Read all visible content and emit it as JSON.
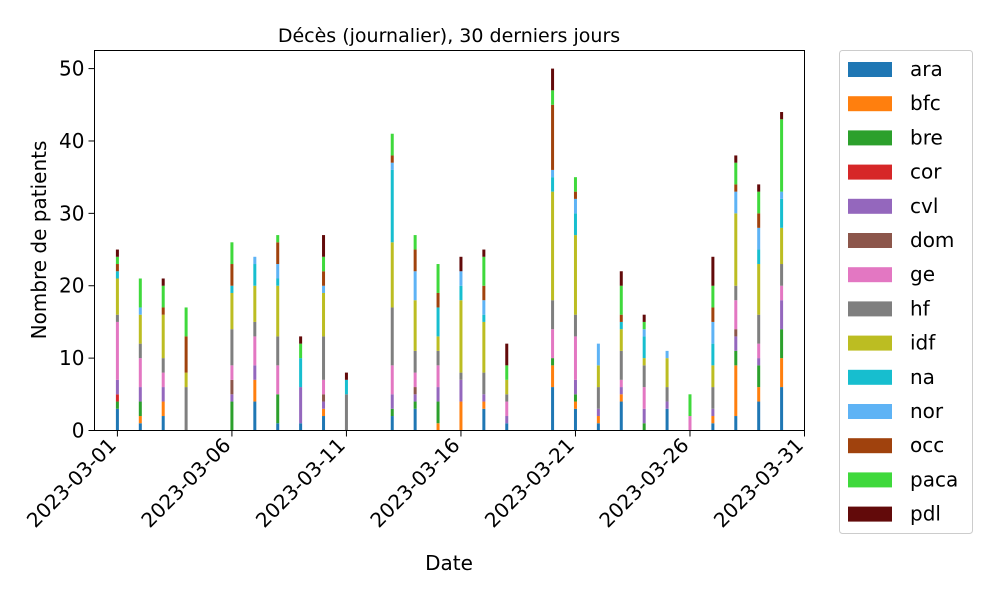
{
  "chart_data": {
    "type": "bar",
    "stacked": true,
    "title": "Décès (journalier), 30 derniers jours",
    "xlabel": "Date",
    "ylabel": "Nombre de patients",
    "ylim": [
      0,
      52.5
    ],
    "xlim": [
      "2023-02-28",
      "2023-03-31"
    ],
    "yticks": [
      0,
      10,
      20,
      30,
      40,
      50
    ],
    "xticks": [
      "2023-03-01",
      "2023-03-06",
      "2023-03-11",
      "2023-03-16",
      "2023-03-21",
      "2023-03-26",
      "2023-03-31"
    ],
    "grid": false,
    "legend_position": "outside-right",
    "dates": [
      "2023-03-01",
      "2023-03-02",
      "2023-03-03",
      "2023-03-04",
      "2023-03-05",
      "2023-03-06",
      "2023-03-07",
      "2023-03-08",
      "2023-03-09",
      "2023-03-10",
      "2023-03-11",
      "2023-03-12",
      "2023-03-13",
      "2023-03-14",
      "2023-03-15",
      "2023-03-16",
      "2023-03-17",
      "2023-03-18",
      "2023-03-19",
      "2023-03-20",
      "2023-03-21",
      "2023-03-22",
      "2023-03-23",
      "2023-03-24",
      "2023-03-25",
      "2023-03-26",
      "2023-03-27",
      "2023-03-28",
      "2023-03-29",
      "2023-03-30",
      "2023-03-31"
    ],
    "series": [
      {
        "name": "ara",
        "color": "#1f77b4",
        "values": [
          3,
          1,
          2,
          0,
          0,
          0,
          4,
          1,
          1,
          2,
          0,
          0,
          2,
          3,
          0,
          0,
          3,
          1,
          0,
          6,
          3,
          1,
          4,
          0,
          3,
          0,
          1,
          2,
          4,
          6,
          0
        ]
      },
      {
        "name": "bfc",
        "color": "#ff7f0e",
        "values": [
          0,
          1,
          2,
          0,
          0,
          0,
          3,
          0,
          0,
          1,
          0,
          0,
          0,
          0,
          1,
          4,
          1,
          0,
          0,
          3,
          1,
          1,
          1,
          0,
          0,
          0,
          1,
          7,
          2,
          4,
          0
        ]
      },
      {
        "name": "bre",
        "color": "#2ca02c",
        "values": [
          1,
          2,
          0,
          0,
          0,
          4,
          0,
          4,
          0,
          0,
          0,
          0,
          1,
          1,
          3,
          0,
          0,
          0,
          0,
          1,
          1,
          0,
          0,
          1,
          0,
          0,
          0,
          2,
          3,
          4,
          0
        ]
      },
      {
        "name": "cor",
        "color": "#d62728",
        "values": [
          1,
          0,
          0,
          0,
          0,
          0,
          0,
          0,
          0,
          0,
          0,
          0,
          0,
          0,
          0,
          0,
          0,
          0,
          0,
          0,
          0,
          0,
          0,
          0,
          0,
          0,
          0,
          0,
          0,
          0,
          0
        ]
      },
      {
        "name": "cvl",
        "color": "#9467bd",
        "values": [
          2,
          2,
          2,
          0,
          0,
          1,
          2,
          0,
          5,
          1,
          0,
          0,
          2,
          1,
          2,
          3,
          1,
          1,
          0,
          0,
          2,
          1,
          1,
          2,
          1,
          0,
          1,
          2,
          1,
          4,
          0
        ]
      },
      {
        "name": "dom",
        "color": "#8c564b",
        "values": [
          0,
          0,
          0,
          0,
          0,
          2,
          0,
          0,
          0,
          1,
          0,
          0,
          0,
          1,
          0,
          0,
          0,
          0,
          0,
          0,
          0,
          0,
          0,
          0,
          0,
          0,
          0,
          1,
          0,
          0,
          0
        ]
      },
      {
        "name": "ge",
        "color": "#e377c2",
        "values": [
          8,
          4,
          2,
          0,
          0,
          2,
          4,
          4,
          0,
          2,
          0,
          0,
          4,
          2,
          3,
          0,
          0,
          2,
          0,
          4,
          6,
          0,
          1,
          3,
          0,
          2,
          0,
          4,
          2,
          2,
          0
        ]
      },
      {
        "name": "hf",
        "color": "#7f7f7f",
        "values": [
          1,
          2,
          2,
          6,
          0,
          5,
          2,
          4,
          0,
          6,
          5,
          0,
          8,
          3,
          2,
          1,
          3,
          1,
          0,
          4,
          3,
          3,
          4,
          3,
          2,
          0,
          3,
          2,
          4,
          3,
          0
        ]
      },
      {
        "name": "idf",
        "color": "#bcbd22",
        "values": [
          5,
          4,
          6,
          2,
          0,
          5,
          5,
          7,
          0,
          6,
          0,
          0,
          9,
          7,
          2,
          10,
          7,
          2,
          0,
          15,
          11,
          3,
          3,
          1,
          4,
          0,
          3,
          10,
          7,
          5,
          0
        ]
      },
      {
        "name": "na",
        "color": "#17becf",
        "values": [
          1,
          0,
          0,
          0,
          0,
          1,
          3,
          1,
          4,
          0,
          2,
          0,
          10,
          0,
          4,
          2,
          1,
          0,
          0,
          2,
          3,
          0,
          1,
          3,
          0,
          0,
          3,
          0,
          2,
          4,
          0
        ]
      },
      {
        "name": "nor",
        "color": "#5eb3f5",
        "values": [
          0,
          1,
          0,
          0,
          0,
          0,
          1,
          2,
          0,
          1,
          0,
          0,
          1,
          4,
          0,
          2,
          2,
          0,
          0,
          1,
          2,
          3,
          0,
          1,
          1,
          0,
          3,
          3,
          3,
          1,
          0
        ]
      },
      {
        "name": "occ",
        "color": "#a0420d",
        "values": [
          1,
          0,
          1,
          5,
          0,
          3,
          0,
          3,
          0,
          2,
          0,
          0,
          1,
          3,
          2,
          0,
          2,
          0,
          0,
          9,
          1,
          0,
          1,
          0,
          0,
          0,
          2,
          1,
          2,
          0,
          0
        ]
      },
      {
        "name": "paca",
        "color": "#3fd93c",
        "values": [
          1,
          4,
          3,
          4,
          0,
          3,
          0,
          1,
          2,
          2,
          0,
          0,
          3,
          2,
          4,
          0,
          4,
          2,
          0,
          2,
          2,
          0,
          4,
          1,
          0,
          3,
          3,
          3,
          3,
          10,
          0
        ]
      },
      {
        "name": "pdl",
        "color": "#620a0a",
        "values": [
          1,
          0,
          1,
          0,
          0,
          0,
          0,
          0,
          1,
          3,
          1,
          0,
          0,
          0,
          0,
          2,
          1,
          3,
          0,
          3,
          0,
          0,
          2,
          1,
          0,
          0,
          4,
          1,
          1,
          1,
          0
        ]
      }
    ]
  }
}
